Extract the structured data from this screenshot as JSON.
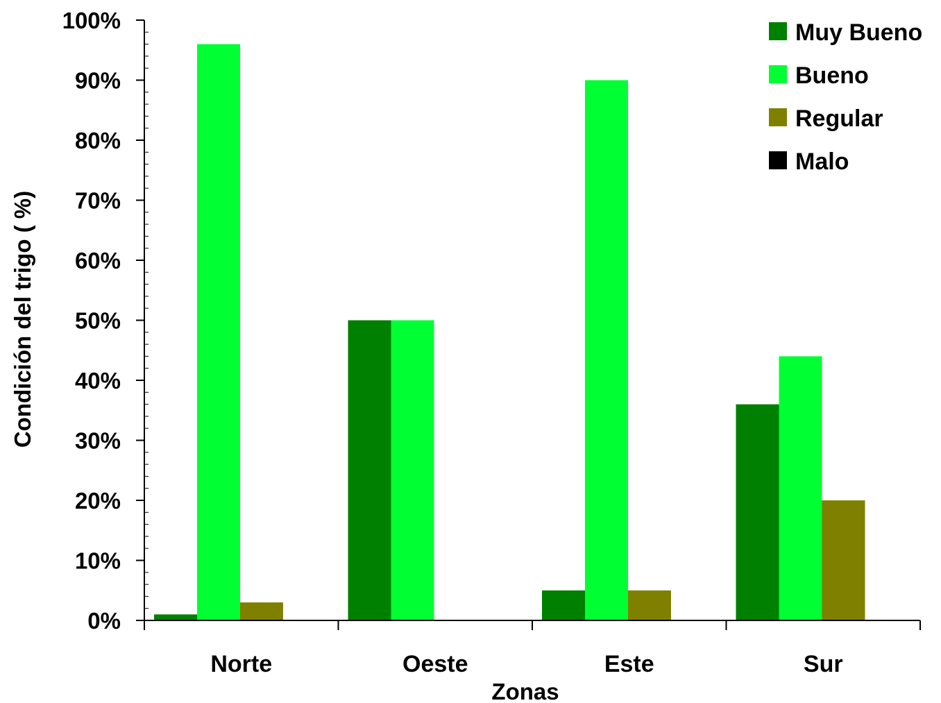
{
  "chart_data": {
    "type": "bar",
    "title": "",
    "xlabel": "Zonas",
    "ylabel": "Condición del trigo ( %)",
    "categories": [
      "Norte",
      "Oeste",
      "Este",
      "Sur"
    ],
    "ylim": [
      0,
      100
    ],
    "yticks": [
      "0%",
      "10%",
      "20%",
      "30%",
      "40%",
      "50%",
      "60%",
      "70%",
      "80%",
      "90%",
      "100%"
    ],
    "grid": false,
    "legend_position": "top-right",
    "series": [
      {
        "name": "Muy Bueno",
        "color": "#008000",
        "values": [
          1,
          50,
          5,
          36
        ]
      },
      {
        "name": "Bueno",
        "color": "#00ff33",
        "values": [
          96,
          50,
          90,
          44
        ]
      },
      {
        "name": "Regular",
        "color": "#808000",
        "values": [
          3,
          0,
          5,
          20
        ]
      },
      {
        "name": "Malo",
        "color": "#000000",
        "values": [
          0,
          0,
          0,
          0
        ]
      }
    ]
  }
}
